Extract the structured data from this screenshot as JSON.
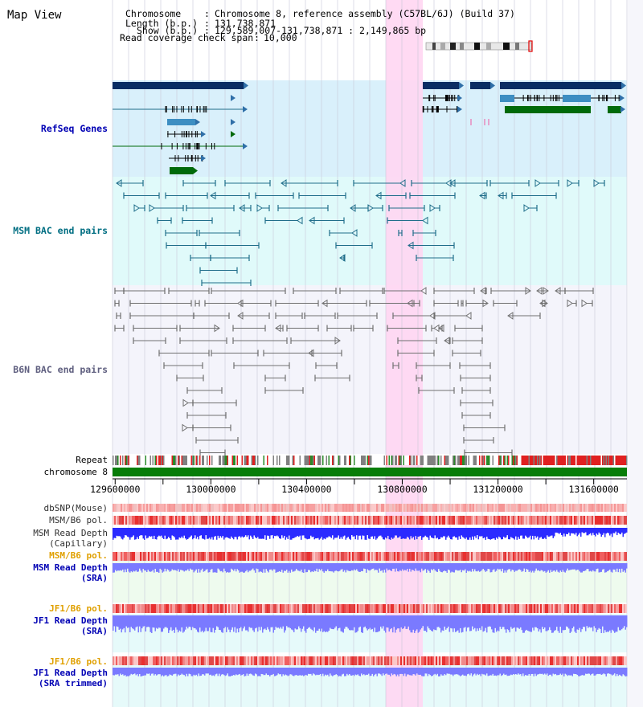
{
  "header": {
    "title": "Map View",
    "chromosome_label": "Chromosome",
    "chromosome_value": "Chromosome 8, reference assembly (C57BL/6J) (Build 37)",
    "length_label": "Length (b.p.)",
    "length_value": "131,738,871",
    "show_label": "Show (b.p.)",
    "show_value": "129,589,007-131,738,871 : 2,149,865 bp",
    "coverage_label": "Read coverage check span",
    "coverage_value": "10,000",
    "sep": ":"
  },
  "tracks": {
    "refseq": "RefSeq Genes",
    "msm_bac": "MSM BAC end pairs",
    "b6n_bac": "B6N BAC end pairs",
    "repeat": "Repeat",
    "chromosome": "chromosome 8",
    "dbsnp": "dbSNP(Mouse)",
    "msm_b6_pol_1": "MSM/B6 pol.",
    "msm_depth_cap_1": "MSM Read Depth",
    "msm_depth_cap_2": "(Capillary)",
    "msm_b6_pol_2": "MSM/B6 pol.",
    "msm_depth_sra_1": "MSM Read Depth",
    "msm_depth_sra_2": "(SRA)",
    "jf1_b6_pol_1": "JF1/B6 pol.",
    "jf1_depth_sra_1": "JF1 Read Depth",
    "jf1_depth_sra_2": "(SRA)",
    "jf1_b6_pol_2": "JF1/B6 pol.",
    "jf1_depth_trim_1": "JF1 Read Depth",
    "jf1_depth_trim_2": "(SRA trimmed)"
  },
  "axis": {
    "ticks": [
      "129600000",
      "130000000",
      "130400000",
      "130800000",
      "131200000",
      "131600000"
    ],
    "domain": [
      129589007,
      131738871
    ]
  },
  "colors": {
    "highlight": "#ffd6f2",
    "refseq_bg": "#d9f0fb",
    "msm_bg": "#e0fafa",
    "b6n_bg": "#f4f4fb",
    "gene_navy": "#0a2d63",
    "gene_green": "#006a0a",
    "gene_blue": "#3d8ec2",
    "msm_pair": "#1f6d8a",
    "b6n_pair": "#707070",
    "pol_red": "#e03030",
    "depth_blue": "#2a2aff",
    "depth_light": "#7a7aff",
    "chrom_green": "#087d08",
    "label_blue": "#0000b4",
    "label_teal": "#006e82",
    "label_orange": "#e0a000"
  }
}
